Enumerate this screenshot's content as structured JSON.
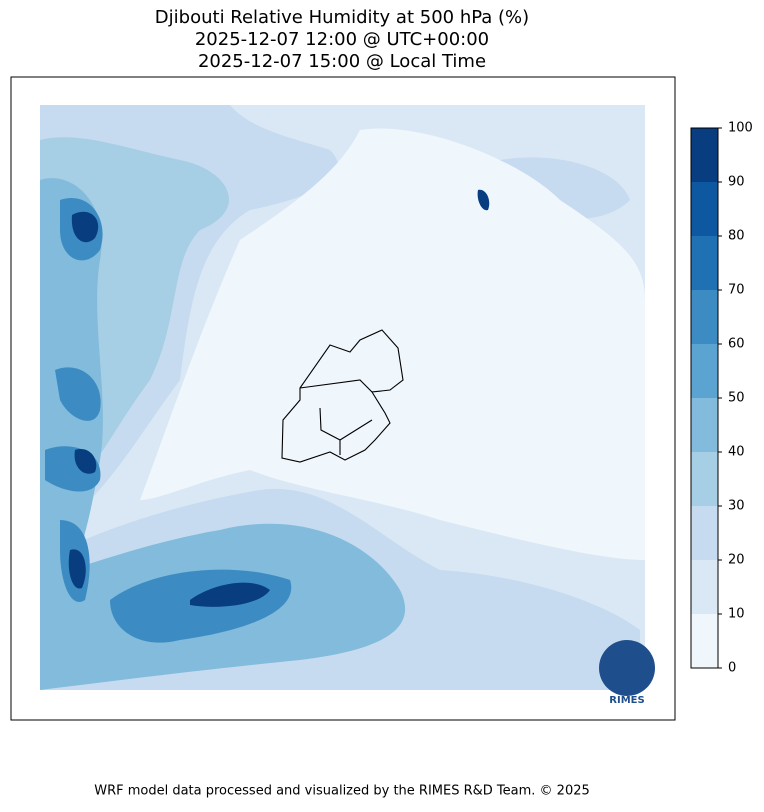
{
  "title": [
    "Djibouti Relative Humidity at 500 hPa (%)",
    "2025-12-07 12:00 @ UTC+00:00",
    "2025-12-07 15:00 @ Local Time"
  ],
  "colorbar": {
    "ticks": [
      0,
      10,
      20,
      30,
      40,
      50,
      60,
      70,
      80,
      90,
      100
    ],
    "colors": [
      "#eff6fc",
      "#dae8f5",
      "#c6dbef",
      "#a6cee4",
      "#82bbdb",
      "#5ba3d0",
      "#3c8cc3",
      "#2070b4",
      "#0d58a1",
      "#083d7f"
    ]
  },
  "logo": "RIMES",
  "footer": "WRF model data processed and visualized by the RIMES R&D Team. © 2025"
}
